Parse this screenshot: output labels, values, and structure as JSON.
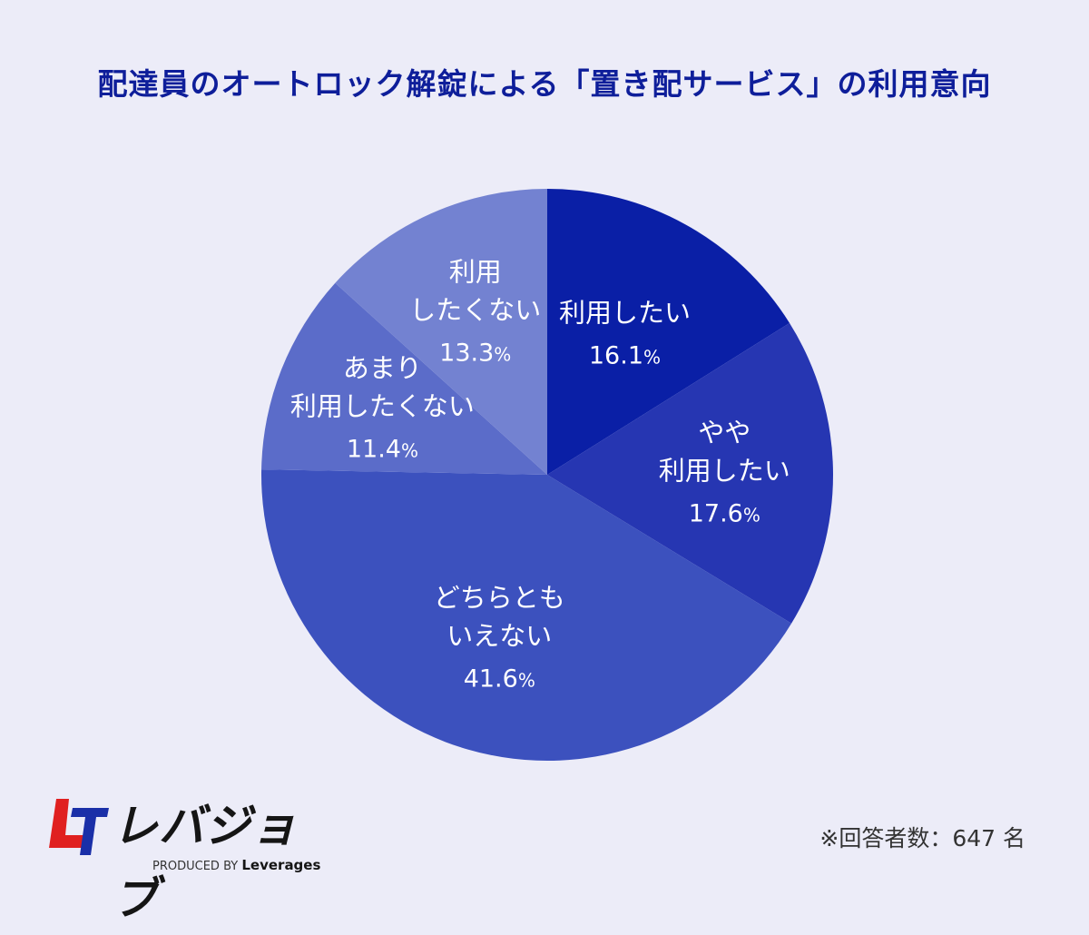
{
  "title": "配達員のオートロック解錠による「置き配サービス」の利用意向",
  "chart_data": {
    "type": "pie",
    "title": "配達員のオートロック解錠による「置き配サービス」の利用意向",
    "start_angle": "12 o'clock",
    "direction": "clockwise",
    "unit": "%",
    "slices": [
      {
        "label_lines": [
          "利用したい"
        ],
        "value": 16.1,
        "value_text": "16.1",
        "color": "#0A1FA6"
      },
      {
        "label_lines": [
          "やや",
          "利用したい"
        ],
        "value": 17.6,
        "value_text": "17.6",
        "color": "#2636B2"
      },
      {
        "label_lines": [
          "どちらとも",
          "いえない"
        ],
        "value": 41.6,
        "value_text": "41.6",
        "color": "#3C51BE"
      },
      {
        "label_lines": [
          "あまり",
          "利用したくない"
        ],
        "value": 11.4,
        "value_text": "11.4",
        "color": "#5B6CC9"
      },
      {
        "label_lines": [
          "利用",
          "したくない"
        ],
        "value": 13.3,
        "value_text": "13.3",
        "color": "#7382D1"
      }
    ]
  },
  "logo": {
    "text": "レバジョブ",
    "produced_by": "PRODUCED BY",
    "brand": "Leverages"
  },
  "note": "※回答者数：647 名"
}
